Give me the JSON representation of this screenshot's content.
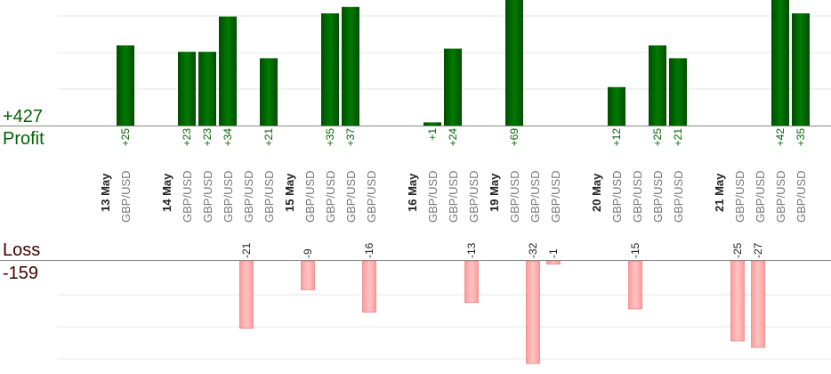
{
  "summary": {
    "profit_total": "+427",
    "profit_label": "Profit",
    "loss_label": "Loss",
    "loss_total": "-159"
  },
  "chart_data": {
    "type": "bar",
    "slots": [
      {
        "kind": "date",
        "label": "13 May"
      },
      {
        "kind": "trade",
        "label": "GBP/USD",
        "value": 25
      },
      {
        "kind": "gap"
      },
      {
        "kind": "date",
        "label": "14 May"
      },
      {
        "kind": "trade",
        "label": "GBP/USD",
        "value": 23
      },
      {
        "kind": "trade",
        "label": "GBP/USD",
        "value": 23
      },
      {
        "kind": "trade",
        "label": "GBP/USD",
        "value": 34
      },
      {
        "kind": "trade",
        "label": "GBP/USD",
        "value": -21
      },
      {
        "kind": "trade",
        "label": "GBP/USD",
        "value": 21
      },
      {
        "kind": "date",
        "label": "15 May"
      },
      {
        "kind": "trade",
        "label": "GBP/USD",
        "value": -9
      },
      {
        "kind": "trade",
        "label": "GBP/USD",
        "value": 35
      },
      {
        "kind": "trade",
        "label": "GBP/USD",
        "value": 37
      },
      {
        "kind": "trade",
        "label": "GBP/USD",
        "value": -16
      },
      {
        "kind": "gap"
      },
      {
        "kind": "date",
        "label": "16 May"
      },
      {
        "kind": "trade",
        "label": "GBP/USD",
        "value": 1
      },
      {
        "kind": "trade",
        "label": "GBP/USD",
        "value": 24
      },
      {
        "kind": "trade",
        "label": "GBP/USD",
        "value": -13
      },
      {
        "kind": "date",
        "label": "19 May"
      },
      {
        "kind": "trade",
        "label": "GBP/USD",
        "value": 69
      },
      {
        "kind": "trade",
        "label": "GBP/USD",
        "value": -32
      },
      {
        "kind": "trade",
        "label": "GBP/USD",
        "value": -1
      },
      {
        "kind": "gap"
      },
      {
        "kind": "date",
        "label": "20 May"
      },
      {
        "kind": "trade",
        "label": "GBP/USD",
        "value": 12
      },
      {
        "kind": "trade",
        "label": "GBP/USD",
        "value": -15
      },
      {
        "kind": "trade",
        "label": "GBP/USD",
        "value": 25
      },
      {
        "kind": "trade",
        "label": "GBP/USD",
        "value": 21
      },
      {
        "kind": "gap"
      },
      {
        "kind": "date",
        "label": "21 May"
      },
      {
        "kind": "trade",
        "label": "GBP/USD",
        "value": -25
      },
      {
        "kind": "trade",
        "label": "GBP/USD",
        "value": -27
      },
      {
        "kind": "trade",
        "label": "GBP/USD",
        "value": 42
      },
      {
        "kind": "trade",
        "label": "GBP/USD",
        "value": 35
      }
    ],
    "colors": {
      "profit": "#006400",
      "loss": "#ffaaaa",
      "loss_border": "#e07070",
      "date_text": "#222222",
      "pair_text": "#777777",
      "profit_label": "#006400",
      "loss_label": "#400000",
      "axis": "#888888",
      "grid": "#e6e6e6"
    }
  }
}
